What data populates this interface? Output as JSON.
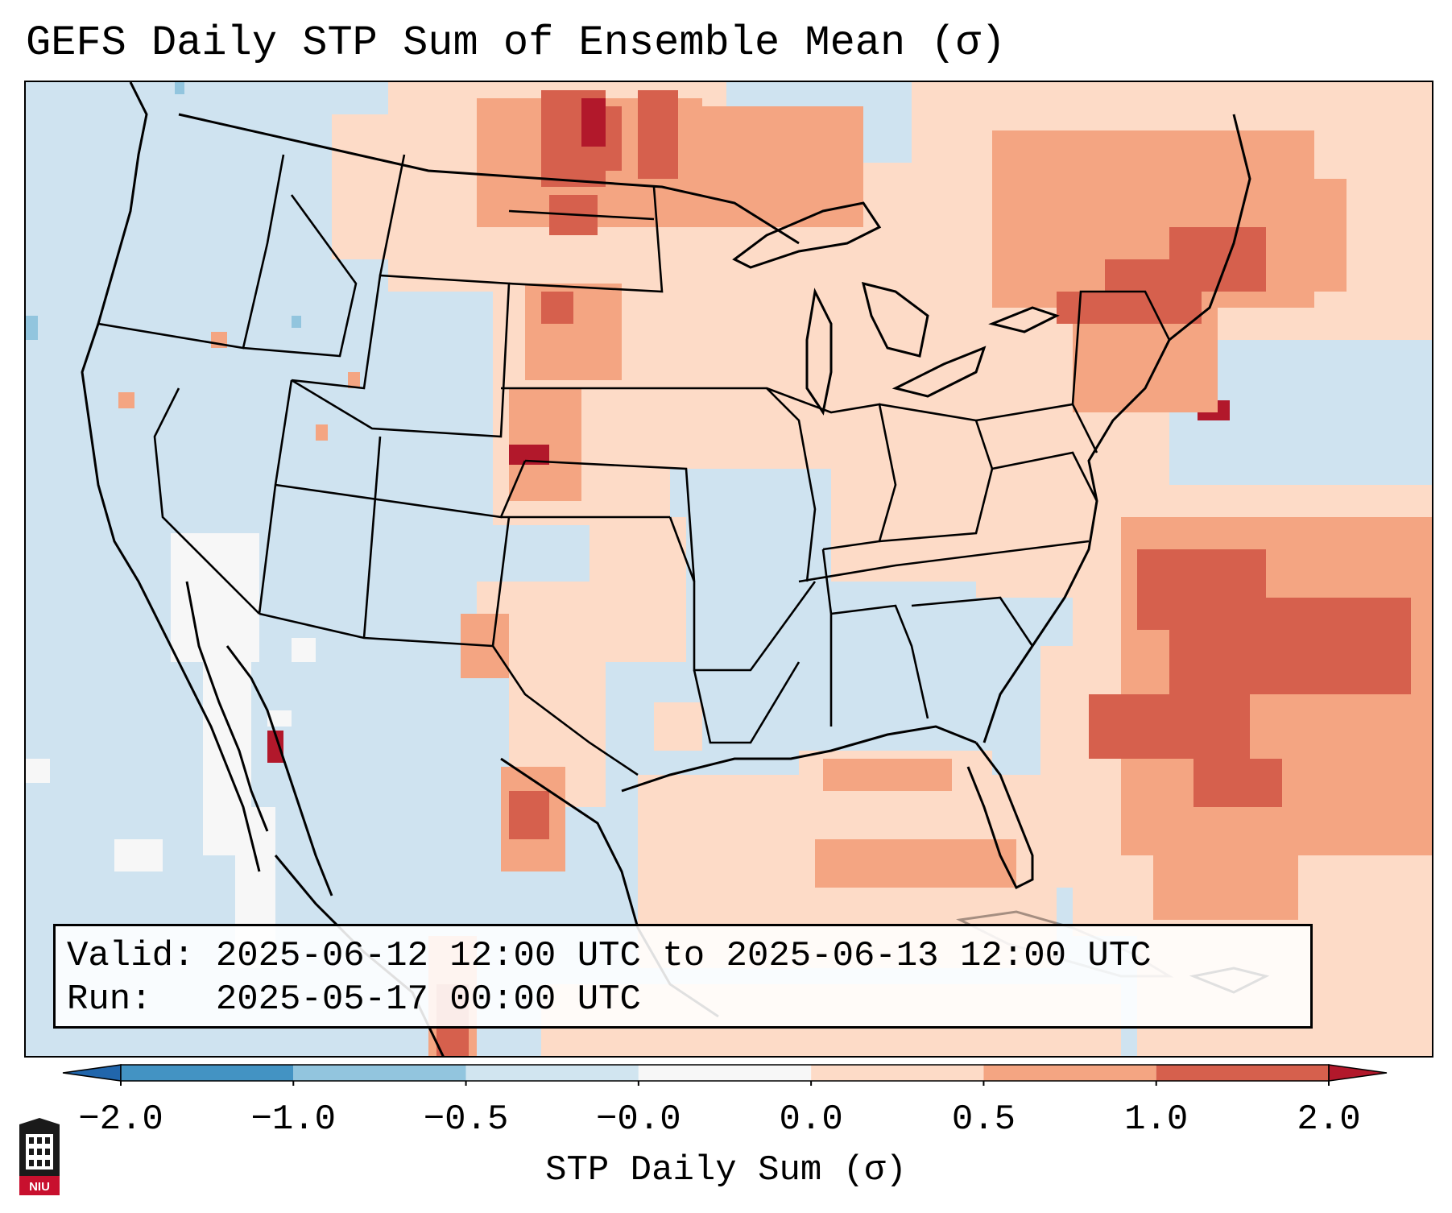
{
  "title": "GEFS Daily STP Sum of Ensemble Mean (σ)",
  "info": {
    "valid_label": "Valid:",
    "valid_text": "2025-06-12 12:00 UTC to 2025-06-13 12:00 UTC",
    "run_label": "Run:",
    "run_text": "2025-05-17 00:00 UTC"
  },
  "colorbar": {
    "title": "STP Daily Sum (σ)",
    "tick_labels": [
      "−2.0",
      "−1.0",
      "−0.5",
      "−0.0",
      "0.0",
      "0.5",
      "1.0",
      "2.0"
    ],
    "bins": [
      {
        "label": "−2.0 to −1.0",
        "color": "#4393c3"
      },
      {
        "label": "−1.0 to −0.5",
        "color": "#92c5de"
      },
      {
        "label": "−0.5 to −0.0",
        "color": "#d1e5f0"
      },
      {
        "label": "−0.0 to 0.0",
        "color": "#f7f7f7"
      },
      {
        "label": "0.0 to 0.5",
        "color": "#fddbc7"
      },
      {
        "label": "0.5 to 1.0",
        "color": "#f4a582"
      },
      {
        "label": "1.0 to 2.0",
        "color": "#d6604d"
      }
    ],
    "under_color": "#2166ac",
    "over_color": "#b2182b"
  },
  "logo": {
    "text": "NIU"
  }
}
